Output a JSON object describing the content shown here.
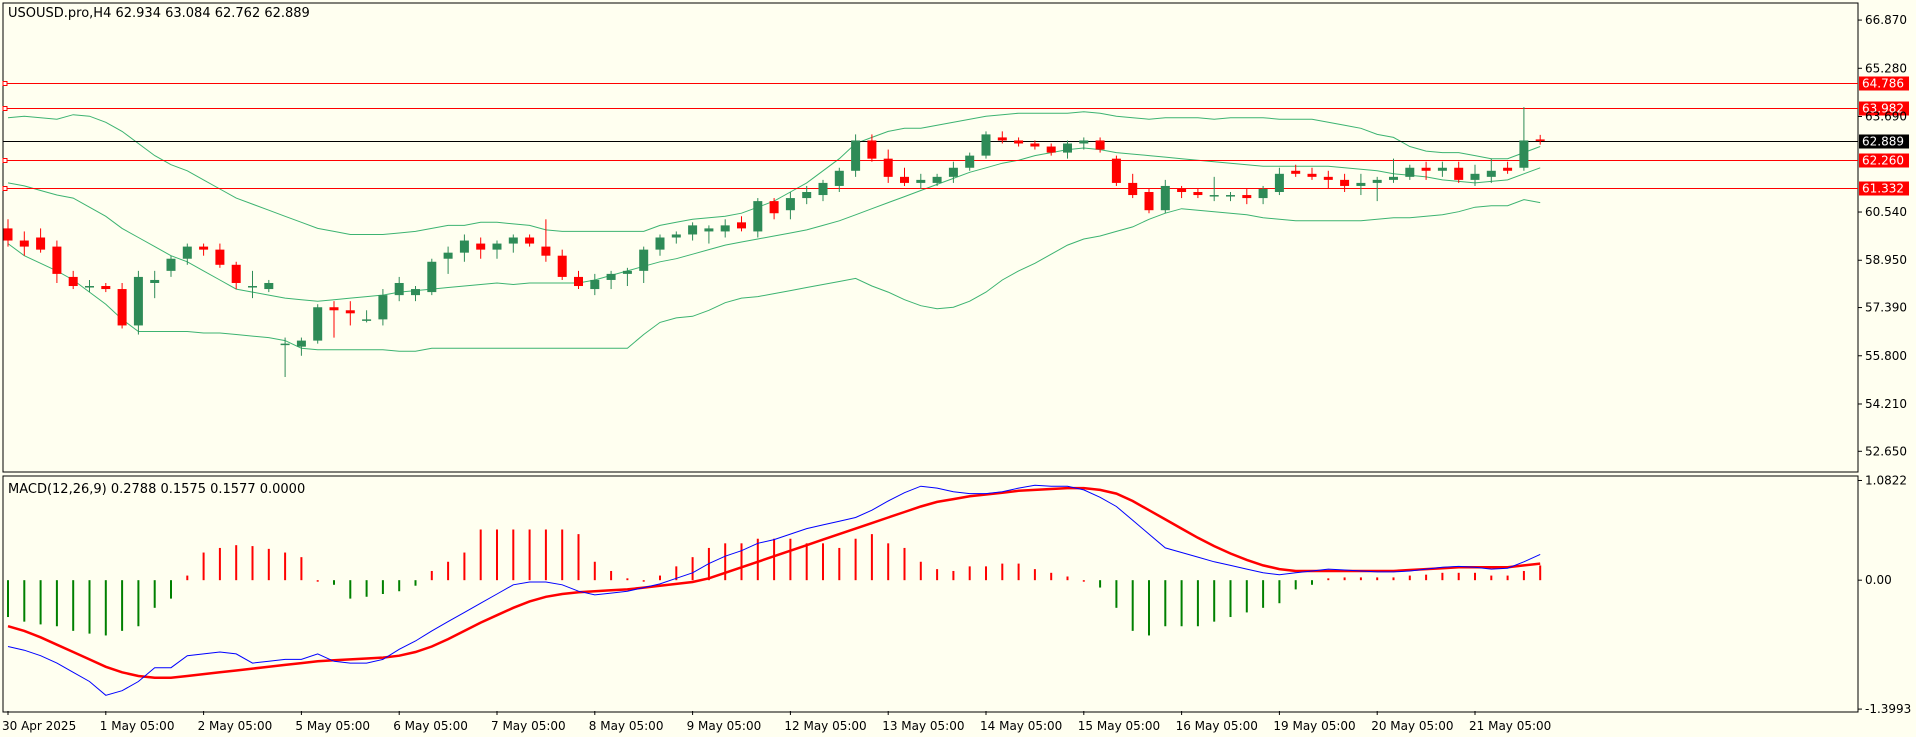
{
  "chart_data": {
    "type": "candlestick",
    "symbol_header": "USOUSD.pro,H4  62.934 63.084 62.762 62.889",
    "price_axis": {
      "ylim": [
        52.0,
        67.4
      ],
      "ticks": [
        "66.870",
        "65.280",
        "63.690",
        "60.540",
        "58.950",
        "57.390",
        "55.800",
        "54.210",
        "52.650"
      ]
    },
    "price_lines": [
      {
        "value": 64.786,
        "label": "64.786",
        "color": "#ff0000"
      },
      {
        "value": 63.982,
        "label": "63.982",
        "color": "#ff0000"
      },
      {
        "value": 62.889,
        "label": "62.889",
        "color": "#000000"
      },
      {
        "value": 62.26,
        "label": "62.260",
        "color": "#ff0000"
      },
      {
        "value": 61.332,
        "label": "61.332",
        "color": "#ff0000"
      }
    ],
    "time_labels": [
      "30 Apr 2025",
      "1 May 05:00",
      "2 May 05:00",
      "5 May 05:00",
      "6 May 05:00",
      "7 May 05:00",
      "8 May 05:00",
      "9 May 05:00",
      "12 May 05:00",
      "13 May 05:00",
      "14 May 05:00",
      "15 May 05:00",
      "16 May 05:00",
      "19 May 05:00",
      "20 May 05:00",
      "21 May 05:00"
    ],
    "candles": [
      [
        60.0,
        60.3,
        59.4,
        59.6
      ],
      [
        59.6,
        59.9,
        59.1,
        59.4
      ],
      [
        59.7,
        60.0,
        59.2,
        59.3
      ],
      [
        59.4,
        59.6,
        58.2,
        58.5
      ],
      [
        58.4,
        58.6,
        58.0,
        58.1
      ],
      [
        58.1,
        58.3,
        57.9,
        58.1
      ],
      [
        58.1,
        58.2,
        57.9,
        58.0
      ],
      [
        58.0,
        58.2,
        56.7,
        56.8
      ],
      [
        56.8,
        58.6,
        56.5,
        58.4
      ],
      [
        58.2,
        58.6,
        57.7,
        58.3
      ],
      [
        58.6,
        59.1,
        58.4,
        59.0
      ],
      [
        59.0,
        59.5,
        58.8,
        59.4
      ],
      [
        59.4,
        59.5,
        59.1,
        59.3
      ],
      [
        59.3,
        59.5,
        58.7,
        58.8
      ],
      [
        58.8,
        58.9,
        58.0,
        58.2
      ],
      [
        58.1,
        58.6,
        57.7,
        58.1
      ],
      [
        58.0,
        58.3,
        57.9,
        58.2
      ],
      [
        56.2,
        56.4,
        55.1,
        56.2
      ],
      [
        56.1,
        56.4,
        55.8,
        56.3
      ],
      [
        56.3,
        57.5,
        56.2,
        57.4
      ],
      [
        57.4,
        57.6,
        56.4,
        57.3
      ],
      [
        57.3,
        57.6,
        56.8,
        57.2
      ],
      [
        57.0,
        57.3,
        56.9,
        57.0
      ],
      [
        57.0,
        58.0,
        56.8,
        57.8
      ],
      [
        57.8,
        58.4,
        57.6,
        58.2
      ],
      [
        57.8,
        58.1,
        57.6,
        58.0
      ],
      [
        57.9,
        59.0,
        57.8,
        58.9
      ],
      [
        59.0,
        59.4,
        58.5,
        59.2
      ],
      [
        59.2,
        59.8,
        58.9,
        59.6
      ],
      [
        59.5,
        59.7,
        59.0,
        59.3
      ],
      [
        59.3,
        59.6,
        59.0,
        59.5
      ],
      [
        59.5,
        59.8,
        59.2,
        59.7
      ],
      [
        59.7,
        59.8,
        59.4,
        59.5
      ],
      [
        59.4,
        60.3,
        58.9,
        59.1
      ],
      [
        59.1,
        59.3,
        58.3,
        58.4
      ],
      [
        58.4,
        58.6,
        58.0,
        58.1
      ],
      [
        58.0,
        58.5,
        57.8,
        58.3
      ],
      [
        58.3,
        58.6,
        58.0,
        58.5
      ],
      [
        58.5,
        58.7,
        58.1,
        58.6
      ],
      [
        58.6,
        59.4,
        58.2,
        59.3
      ],
      [
        59.3,
        59.8,
        59.1,
        59.7
      ],
      [
        59.7,
        59.9,
        59.5,
        59.8
      ],
      [
        59.8,
        60.2,
        59.6,
        60.1
      ],
      [
        59.9,
        60.1,
        59.5,
        60.0
      ],
      [
        59.9,
        60.3,
        59.7,
        60.1
      ],
      [
        60.2,
        60.4,
        59.9,
        60.0
      ],
      [
        59.9,
        61.0,
        59.7,
        60.9
      ],
      [
        60.9,
        61.0,
        60.3,
        60.5
      ],
      [
        60.6,
        61.2,
        60.3,
        61.0
      ],
      [
        61.0,
        61.4,
        60.8,
        61.2
      ],
      [
        61.1,
        61.6,
        60.9,
        61.5
      ],
      [
        61.4,
        62.0,
        61.2,
        61.9
      ],
      [
        61.9,
        63.1,
        61.7,
        62.9
      ],
      [
        62.9,
        63.1,
        62.2,
        62.3
      ],
      [
        62.3,
        62.6,
        61.5,
        61.7
      ],
      [
        61.7,
        62.0,
        61.4,
        61.5
      ],
      [
        61.5,
        61.8,
        61.3,
        61.6
      ],
      [
        61.5,
        61.8,
        61.4,
        61.7
      ],
      [
        61.7,
        62.2,
        61.5,
        62.0
      ],
      [
        62.0,
        62.5,
        61.9,
        62.4
      ],
      [
        62.4,
        63.2,
        62.3,
        63.1
      ],
      [
        63.0,
        63.2,
        62.8,
        62.9
      ],
      [
        62.9,
        63.0,
        62.7,
        62.8
      ],
      [
        62.8,
        62.9,
        62.6,
        62.7
      ],
      [
        62.7,
        62.8,
        62.4,
        62.5
      ],
      [
        62.5,
        62.9,
        62.3,
        62.8
      ],
      [
        62.8,
        63.0,
        62.6,
        62.9
      ],
      [
        62.9,
        63.0,
        62.5,
        62.6
      ],
      [
        62.3,
        62.4,
        61.4,
        61.5
      ],
      [
        61.5,
        61.8,
        61.0,
        61.1
      ],
      [
        61.2,
        61.3,
        60.5,
        60.6
      ],
      [
        60.6,
        61.6,
        60.5,
        61.4
      ],
      [
        61.3,
        61.4,
        61.0,
        61.2
      ],
      [
        61.2,
        61.3,
        61.0,
        61.1
      ],
      [
        61.1,
        61.7,
        60.9,
        61.1
      ],
      [
        61.1,
        61.2,
        60.9,
        61.1
      ],
      [
        61.1,
        61.3,
        60.8,
        61.0
      ],
      [
        61.0,
        61.4,
        60.8,
        61.3
      ],
      [
        61.2,
        62.0,
        61.1,
        61.8
      ],
      [
        61.9,
        62.1,
        61.7,
        61.8
      ],
      [
        61.8,
        62.0,
        61.6,
        61.7
      ],
      [
        61.7,
        61.9,
        61.3,
        61.6
      ],
      [
        61.6,
        61.8,
        61.2,
        61.4
      ],
      [
        61.4,
        61.8,
        61.1,
        61.5
      ],
      [
        61.5,
        61.7,
        60.9,
        61.6
      ],
      [
        61.6,
        62.3,
        61.5,
        61.7
      ],
      [
        61.7,
        62.1,
        61.6,
        62.0
      ],
      [
        62.0,
        62.2,
        61.6,
        61.9
      ],
      [
        61.9,
        62.2,
        61.7,
        62.0
      ],
      [
        62.0,
        62.2,
        61.5,
        61.6
      ],
      [
        61.6,
        62.1,
        61.4,
        61.8
      ],
      [
        61.7,
        62.3,
        61.5,
        61.9
      ],
      [
        62.0,
        62.2,
        61.8,
        61.9
      ],
      [
        62.0,
        64.0,
        61.9,
        62.9
      ],
      [
        62.934,
        63.084,
        62.762,
        62.889
      ]
    ],
    "bands": {
      "upper": [
        63.65,
        63.7,
        63.65,
        63.6,
        63.75,
        63.7,
        63.5,
        63.2,
        62.8,
        62.4,
        62.1,
        61.9,
        61.6,
        61.3,
        61.0,
        60.8,
        60.6,
        60.4,
        60.2,
        60.0,
        59.9,
        59.8,
        59.8,
        59.8,
        59.85,
        59.9,
        60.0,
        60.1,
        60.1,
        60.2,
        60.2,
        60.15,
        60.1,
        59.95,
        59.9,
        59.9,
        59.9,
        59.9,
        59.9,
        59.9,
        60.1,
        60.2,
        60.3,
        60.35,
        60.4,
        60.5,
        60.7,
        60.9,
        61.2,
        61.5,
        61.9,
        62.3,
        62.8,
        63.0,
        63.2,
        63.3,
        63.3,
        63.4,
        63.5,
        63.6,
        63.7,
        63.75,
        63.8,
        63.8,
        63.8,
        63.8,
        63.85,
        63.8,
        63.7,
        63.65,
        63.6,
        63.65,
        63.65,
        63.65,
        63.6,
        63.65,
        63.65,
        63.65,
        63.6,
        63.6,
        63.6,
        63.5,
        63.4,
        63.3,
        63.1,
        63.0,
        62.7,
        62.55,
        62.5,
        62.5,
        62.4,
        62.3,
        62.3,
        62.5,
        62.7
      ],
      "middle": [
        61.5,
        61.4,
        61.25,
        61.1,
        61.0,
        60.7,
        60.4,
        60.0,
        59.7,
        59.4,
        59.1,
        58.9,
        58.6,
        58.3,
        58.0,
        57.9,
        57.8,
        57.7,
        57.65,
        57.6,
        57.65,
        57.7,
        57.75,
        57.8,
        57.9,
        57.95,
        58.0,
        58.05,
        58.1,
        58.15,
        58.2,
        58.15,
        58.2,
        58.2,
        58.2,
        58.2,
        58.3,
        58.45,
        58.6,
        58.75,
        58.9,
        59.0,
        59.15,
        59.3,
        59.45,
        59.55,
        59.65,
        59.75,
        59.85,
        59.95,
        60.1,
        60.25,
        60.45,
        60.65,
        60.85,
        61.05,
        61.25,
        61.45,
        61.65,
        61.85,
        62.0,
        62.15,
        62.25,
        62.4,
        62.5,
        62.6,
        62.65,
        62.6,
        62.5,
        62.45,
        62.4,
        62.35,
        62.3,
        62.25,
        62.2,
        62.15,
        62.1,
        62.05,
        62.05,
        62.05,
        62.05,
        62.05,
        62.0,
        61.95,
        61.9,
        61.8,
        61.75,
        61.7,
        61.6,
        61.55,
        61.5,
        61.55,
        61.6,
        61.8,
        62.0
      ],
      "lower": [
        59.5,
        59.1,
        58.85,
        58.6,
        58.3,
        57.9,
        57.5,
        57.0,
        56.6,
        56.6,
        56.6,
        56.6,
        56.55,
        56.55,
        56.5,
        56.45,
        56.4,
        56.3,
        56.05,
        56.0,
        56.0,
        56.0,
        56.0,
        56.0,
        55.95,
        55.95,
        56.05,
        56.05,
        56.05,
        56.05,
        56.05,
        56.05,
        56.05,
        56.05,
        56.05,
        56.05,
        56.05,
        56.05,
        56.05,
        56.5,
        56.9,
        57.05,
        57.1,
        57.3,
        57.55,
        57.7,
        57.75,
        57.85,
        57.95,
        58.05,
        58.15,
        58.25,
        58.35,
        58.1,
        57.9,
        57.65,
        57.45,
        57.35,
        57.4,
        57.6,
        57.9,
        58.3,
        58.6,
        58.85,
        59.15,
        59.45,
        59.65,
        59.75,
        59.9,
        60.05,
        60.3,
        60.5,
        60.65,
        60.6,
        60.55,
        60.5,
        60.45,
        60.35,
        60.3,
        60.25,
        60.25,
        60.25,
        60.25,
        60.25,
        60.3,
        60.35,
        60.35,
        60.4,
        60.45,
        60.55,
        60.7,
        60.75,
        60.75,
        60.95,
        60.85
      ]
    },
    "macd": {
      "header": "MACD(12,26,9) 0.2788 0.1575 0.1577 0.0000",
      "ylim": [
        -1.42,
        1.12
      ],
      "ticks": [
        "1.0822",
        "0.00",
        "-1.3993"
      ],
      "histogram": [
        -0.4,
        -0.45,
        -0.48,
        -0.5,
        -0.55,
        -0.58,
        -0.6,
        -0.55,
        -0.5,
        -0.3,
        -0.2,
        0.05,
        0.3,
        0.35,
        0.38,
        0.37,
        0.34,
        0.3,
        0.25,
        0.0,
        -0.05,
        -0.2,
        -0.18,
        -0.15,
        -0.12,
        -0.06,
        0.1,
        0.2,
        0.3,
        0.55,
        0.55,
        0.55,
        0.55,
        0.55,
        0.55,
        0.5,
        0.2,
        0.1,
        0.02,
        0.0,
        0.05,
        0.15,
        0.25,
        0.35,
        0.4,
        0.4,
        0.45,
        0.45,
        0.45,
        0.4,
        0.4,
        0.35,
        0.45,
        0.5,
        0.4,
        0.35,
        0.2,
        0.12,
        0.1,
        0.15,
        0.15,
        0.18,
        0.18,
        0.12,
        0.08,
        0.04,
        0.0,
        -0.08,
        -0.3,
        -0.55,
        -0.6,
        -0.5,
        -0.5,
        -0.5,
        -0.45,
        -0.4,
        -0.35,
        -0.3,
        -0.25,
        -0.1,
        -0.05,
        0.02,
        0.03,
        0.03,
        0.03,
        0.03,
        0.05,
        0.06,
        0.08,
        0.08,
        0.08,
        0.05,
        0.05,
        0.1,
        0.16
      ],
      "macd_line": [
        -0.72,
        -0.76,
        -0.82,
        -0.9,
        -1.0,
        -1.1,
        -1.25,
        -1.2,
        -1.1,
        -0.95,
        -0.95,
        -0.82,
        -0.8,
        -0.78,
        -0.8,
        -0.9,
        -0.88,
        -0.86,
        -0.86,
        -0.8,
        -0.88,
        -0.9,
        -0.9,
        -0.86,
        -0.75,
        -0.66,
        -0.55,
        -0.45,
        -0.35,
        -0.25,
        -0.15,
        -0.05,
        -0.02,
        -0.02,
        -0.05,
        -0.12,
        -0.16,
        -0.14,
        -0.12,
        -0.08,
        -0.04,
        0.02,
        0.08,
        0.18,
        0.26,
        0.32,
        0.4,
        0.44,
        0.5,
        0.56,
        0.6,
        0.64,
        0.68,
        0.76,
        0.86,
        0.95,
        1.02,
        1.0,
        0.96,
        0.94,
        0.94,
        0.96,
        1.0,
        1.03,
        1.02,
        1.02,
        0.98,
        0.9,
        0.8,
        0.65,
        0.5,
        0.35,
        0.3,
        0.25,
        0.2,
        0.16,
        0.12,
        0.08,
        0.06,
        0.08,
        0.1,
        0.12,
        0.11,
        0.1,
        0.09,
        0.09,
        0.1,
        0.12,
        0.14,
        0.15,
        0.14,
        0.12,
        0.13,
        0.2,
        0.28
      ],
      "signal_line": [
        -0.5,
        -0.55,
        -0.62,
        -0.7,
        -0.78,
        -0.86,
        -0.94,
        -1.0,
        -1.04,
        -1.06,
        -1.06,
        -1.04,
        -1.02,
        -1.0,
        -0.98,
        -0.96,
        -0.94,
        -0.92,
        -0.9,
        -0.88,
        -0.87,
        -0.86,
        -0.85,
        -0.84,
        -0.82,
        -0.78,
        -0.72,
        -0.64,
        -0.55,
        -0.46,
        -0.38,
        -0.3,
        -0.23,
        -0.18,
        -0.15,
        -0.13,
        -0.12,
        -0.11,
        -0.1,
        -0.08,
        -0.06,
        -0.04,
        -0.02,
        0.02,
        0.08,
        0.14,
        0.2,
        0.26,
        0.32,
        0.38,
        0.44,
        0.5,
        0.56,
        0.62,
        0.68,
        0.74,
        0.8,
        0.85,
        0.88,
        0.91,
        0.93,
        0.95,
        0.97,
        0.98,
        0.99,
        1.0,
        1.0,
        0.98,
        0.94,
        0.86,
        0.76,
        0.66,
        0.56,
        0.46,
        0.37,
        0.29,
        0.22,
        0.16,
        0.12,
        0.1,
        0.1,
        0.1,
        0.1,
        0.1,
        0.1,
        0.1,
        0.11,
        0.12,
        0.13,
        0.14,
        0.14,
        0.14,
        0.14,
        0.16,
        0.18
      ]
    },
    "colors": {
      "background": "#fffff0",
      "bull": "#2e8b57",
      "bear": "#ff0000",
      "bands": "#3cb371",
      "macd_line": "#0000ff",
      "signal_line": "#ff0000",
      "hist_positive": "#ff0000",
      "hist_negative": "#008000"
    }
  }
}
